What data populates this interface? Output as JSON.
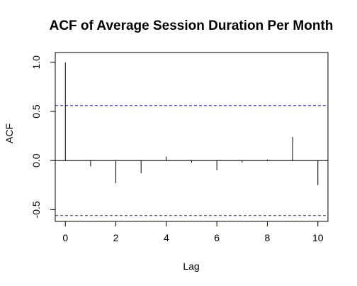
{
  "chart_data": {
    "type": "bar",
    "title": "ACF of Average Session Duration Per Month",
    "xlabel": "Lag",
    "ylabel": "ACF",
    "xlim": [
      -0.4,
      10.4
    ],
    "ylim": [
      -0.62,
      1.1
    ],
    "x_ticks": [
      0,
      2,
      4,
      6,
      8,
      10
    ],
    "y_ticks": [
      -0.5,
      0.0,
      0.5,
      1.0
    ],
    "x_tick_labels": [
      "0",
      "2",
      "4",
      "6",
      "8",
      "10"
    ],
    "y_tick_labels": [
      "-0.5",
      "0.0",
      "0.5",
      "1.0"
    ],
    "lags": [
      0,
      1,
      2,
      3,
      4,
      5,
      6,
      7,
      8,
      9,
      10
    ],
    "acf": [
      1.0,
      -0.06,
      -0.23,
      -0.13,
      0.04,
      -0.02,
      -0.1,
      -0.02,
      0.01,
      0.24,
      -0.25
    ],
    "confidence_limit": 0.56,
    "ci_color": "#2222aa",
    "line_color": "#000000",
    "grid": false
  }
}
